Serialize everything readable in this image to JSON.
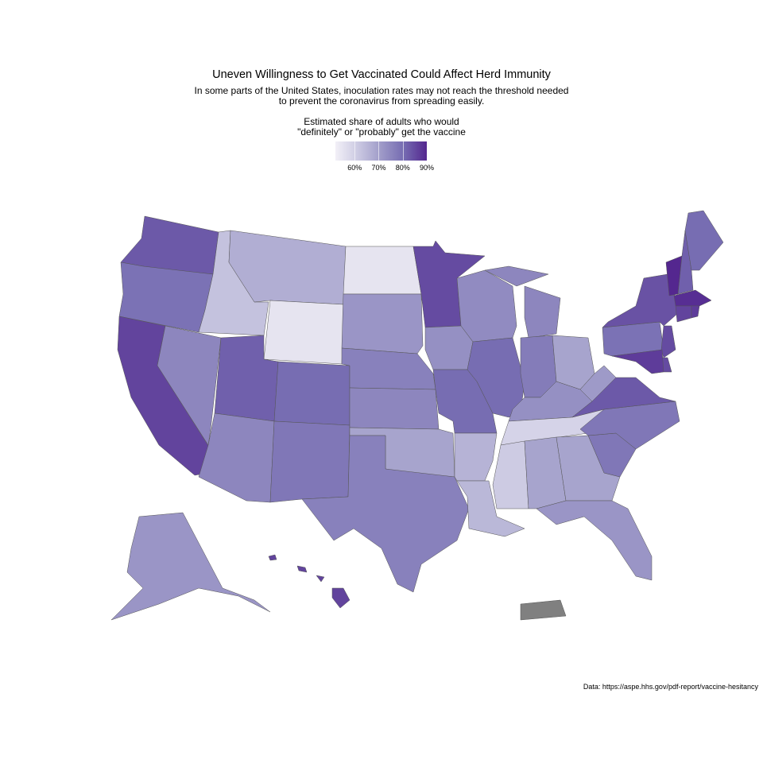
{
  "title": "Uneven Willingness to Get Vaccinated Could Affect Herd Immunity",
  "subtitle_line1": "In some parts of the United States, inoculation rates may not reach the threshold needed",
  "subtitle_line2": "to prevent the coronavirus from spreading easily.",
  "caption": "Data: https://aspe.hhs.gov/pdf-report/vaccine-hesitancy",
  "chart_data": {
    "type": "choropleth",
    "legend": {
      "title_line1": "Estimated share of adults who would",
      "title_line2": "\"definitely\" or \"probably\" get the vaccine",
      "ticks": [
        60,
        70,
        80,
        90
      ],
      "tick_labels": [
        "60%",
        "70%",
        "80%",
        "90%"
      ],
      "range": [
        52,
        90
      ],
      "placement": "top-center",
      "colors": [
        "#f2f0f7",
        "#cbc9e2",
        "#9e9ac8",
        "#756bb1",
        "#54278f"
      ]
    },
    "no_data_color": "#808080",
    "values": {
      "WA": 83,
      "OR": 79,
      "CA": 86,
      "NV": 75,
      "ID": 63,
      "MT": 67,
      "WY": 55,
      "UT": 82,
      "CO": 80,
      "AZ": 75,
      "NM": 78,
      "ND": 55,
      "SD": 72,
      "NE": 76,
      "KS": 75,
      "OK": 69,
      "TX": 76,
      "MN": 85,
      "IA": 73,
      "MO": 80,
      "AR": 66,
      "LA": 65,
      "WI": 74,
      "IL": 80,
      "MI": 75,
      "IN": 77,
      "OH": 69,
      "KY": 73,
      "TN": 59,
      "MS": 61,
      "AL": 69,
      "GA": 69,
      "FL": 72,
      "SC": 78,
      "NC": 78,
      "VA": 83,
      "WV": 71,
      "PA": 79,
      "NY": 84,
      "VT": 90,
      "NH": 82,
      "ME": 80,
      "MA": 89,
      "CT": 86,
      "RI": 87,
      "NJ": 85,
      "DE": 85,
      "MD": 87,
      "AK": 72,
      "HI": 86,
      "PR": null
    }
  }
}
